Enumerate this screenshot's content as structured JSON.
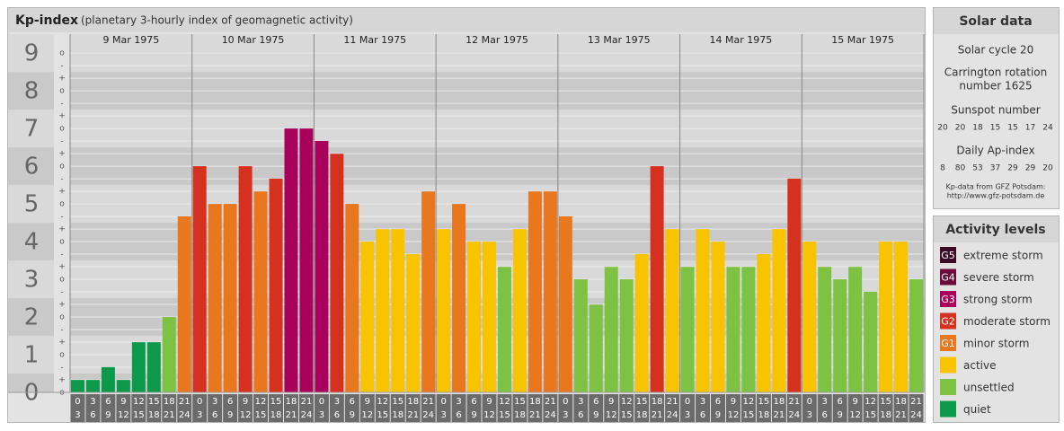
{
  "header": {
    "title": "Kp-index",
    "subtitle": "(planetary 3-hourly index of geomagnetic activity)"
  },
  "chart_data": {
    "type": "bar",
    "days": [
      "9 Mar 1975",
      "10 Mar 1975",
      "11 Mar 1975",
      "12 Mar 1975",
      "13 Mar 1975",
      "14 Mar 1975",
      "15 Mar 1975"
    ],
    "hours_start": [
      0,
      3,
      6,
      9,
      12,
      15,
      18,
      21
    ],
    "hours_end": [
      3,
      6,
      9,
      12,
      15,
      18,
      21,
      24
    ],
    "values": [
      0.33,
      0.33,
      0.67,
      0.33,
      1.33,
      1.33,
      2,
      4.67,
      6,
      5,
      5,
      6,
      5.33,
      5.67,
      7,
      7,
      6.67,
      6.33,
      5,
      4,
      4.33,
      4.33,
      3.67,
      5.33,
      4.33,
      5,
      4,
      4,
      3.33,
      4.33,
      5.33,
      5.33,
      4.67,
      3,
      2.33,
      3.33,
      3,
      3.67,
      6,
      4.33,
      3.33,
      4.33,
      4,
      3.33,
      3.33,
      3.67,
      4.33,
      5.67,
      4,
      3.33,
      3,
      3.33,
      2.67,
      4,
      4,
      3
    ],
    "colors": [
      "#0c9a4a",
      "#0c9a4a",
      "#0c9a4a",
      "#0c9a4a",
      "#0c9a4a",
      "#0c9a4a",
      "#7dc242",
      "#e8771e",
      "#d6301e",
      "#e8771e",
      "#e8771e",
      "#d6301e",
      "#e8771e",
      "#d6301e",
      "#a8005b",
      "#a8005b",
      "#a8005b",
      "#d6301e",
      "#e8771e",
      "#f8c400",
      "#f8c400",
      "#f8c400",
      "#f8c400",
      "#e8771e",
      "#f8c400",
      "#e8771e",
      "#f8c400",
      "#f8c400",
      "#7dc242",
      "#f8c400",
      "#e8771e",
      "#e8771e",
      "#e8771e",
      "#7dc242",
      "#7dc242",
      "#7dc242",
      "#7dc242",
      "#f8c400",
      "#d6301e",
      "#f8c400",
      "#7dc242",
      "#f8c400",
      "#f8c400",
      "#7dc242",
      "#7dc242",
      "#f8c400",
      "#f8c400",
      "#d6301e",
      "#f8c400",
      "#7dc242",
      "#7dc242",
      "#7dc242",
      "#7dc242",
      "#f8c400",
      "#f8c400",
      "#7dc242"
    ],
    "ylim": [
      0,
      9.17
    ],
    "yticks": [
      0,
      1,
      2,
      3,
      4,
      5,
      6,
      7,
      8,
      9
    ],
    "subtick_labels": [
      "-",
      "o",
      "+"
    ],
    "grid": true
  },
  "solar_data": {
    "title": "Solar data",
    "cycle": "Solar cycle 20",
    "carrington": [
      "Carrington rotation",
      "number 1625"
    ],
    "sunspot_label": "Sunspot number",
    "sunspot": [
      20,
      20,
      18,
      15,
      15,
      17,
      24
    ],
    "ap_label": "Daily Ap-index",
    "ap": [
      8,
      80,
      53,
      37,
      29,
      29,
      20
    ],
    "source": [
      "Kp-data from GFZ Potsdam:",
      "http://www.gfz-potsdam.de"
    ]
  },
  "activity_levels": {
    "title": "Activity levels",
    "levels": [
      {
        "code": "G5",
        "name": "extreme storm",
        "color": "#3d0d26"
      },
      {
        "code": "G4",
        "name": "severe storm",
        "color": "#6d0b3b"
      },
      {
        "code": "G3",
        "name": "strong storm",
        "color": "#a8005b"
      },
      {
        "code": "G2",
        "name": "moderate storm",
        "color": "#d6301e"
      },
      {
        "code": "G1",
        "name": "minor storm",
        "color": "#e8771e"
      },
      {
        "name": "active",
        "color": "#f8c400"
      },
      {
        "name": "unsettled",
        "color": "#7dc242"
      },
      {
        "name": "quiet",
        "color": "#0c9a4a"
      }
    ]
  }
}
